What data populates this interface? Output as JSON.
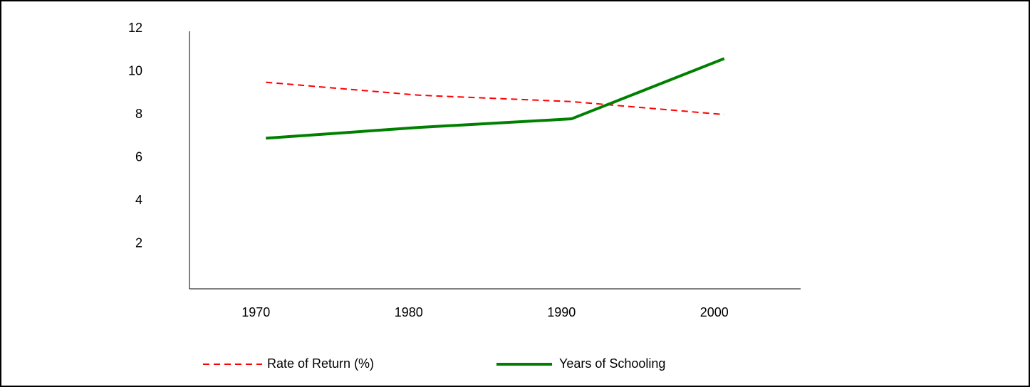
{
  "chart_data": {
    "type": "line",
    "categories": [
      "1970",
      "1980",
      "1990",
      "2000"
    ],
    "series": [
      {
        "name": "Rate of Return (%)",
        "color": "#ff0000",
        "dash": true,
        "values": [
          9.5,
          8.9,
          8.6,
          8.0
        ]
      },
      {
        "name": "Years of Schooling",
        "color": "#008000",
        "dash": false,
        "values": [
          6.9,
          7.4,
          7.8,
          10.6
        ]
      }
    ],
    "ylim": [
      0,
      12
    ],
    "yticks": [
      2,
      4,
      6,
      8,
      10,
      12
    ],
    "grid": false
  }
}
